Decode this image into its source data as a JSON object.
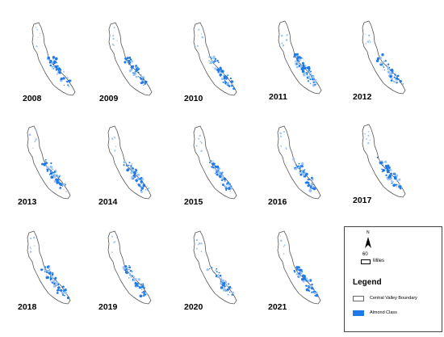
{
  "maps": [
    {
      "year": "2008"
    },
    {
      "year": "2009"
    },
    {
      "year": "2010"
    },
    {
      "year": "2011"
    },
    {
      "year": "2012"
    },
    {
      "year": "2013"
    },
    {
      "year": "2014"
    },
    {
      "year": "2015"
    },
    {
      "year": "2016"
    },
    {
      "year": "2017"
    },
    {
      "year": "2018"
    },
    {
      "year": "2019"
    },
    {
      "year": "2020"
    },
    {
      "year": "2021"
    }
  ],
  "legend": {
    "north_label": "N",
    "scale_value": "60",
    "scale_unit": "Miles",
    "title": "Legend",
    "items": [
      {
        "label": "Central Valley Boundary",
        "color": "#ffffff"
      },
      {
        "label": "Almond Class",
        "color": "#1f7ae8"
      }
    ]
  },
  "colors": {
    "boundary": "#555555",
    "almond": "#1f7ae8",
    "almond_light": "#9cc4f2"
  }
}
